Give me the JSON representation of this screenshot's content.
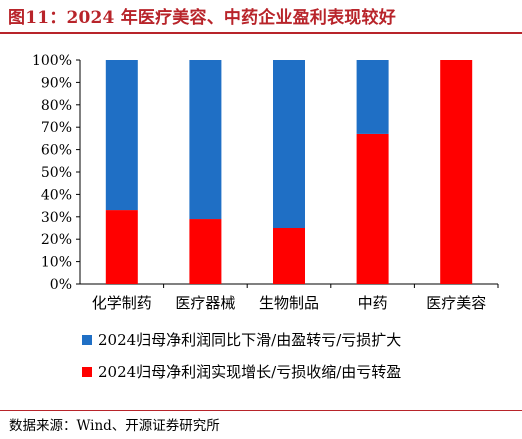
{
  "figure": {
    "title": "图11：2024 年医疗美容、中药企业盈利表现较好",
    "source": "数据来源：Wind、开源证券研究所"
  },
  "colors": {
    "blue": "#1f6fc5",
    "red": "#ff0000",
    "title": "#b8242a"
  },
  "chart_data": {
    "type": "bar",
    "stacked": true,
    "percent": true,
    "categories": [
      "化学制药",
      "医疗器械",
      "生物制品",
      "中药",
      "医疗美容"
    ],
    "series": [
      {
        "name": "2024归母净利润实现增长/亏损收缩/由亏转盈",
        "color": "red",
        "values": [
          33,
          29,
          25,
          67,
          100
        ]
      },
      {
        "name": "2024归母净利润同比下滑/由盈转亏/亏损扩大",
        "color": "blue",
        "values": [
          67,
          71,
          75,
          33,
          0
        ]
      }
    ],
    "ylim": [
      0,
      100
    ],
    "yticks": [
      "0%",
      "10%",
      "20%",
      "30%",
      "40%",
      "50%",
      "60%",
      "70%",
      "80%",
      "90%",
      "100%"
    ],
    "legend": {
      "placement": "bottom",
      "items": [
        "2024归母净利润同比下滑/由盈转亏/亏损扩大",
        "2024归母净利润实现增长/亏损收缩/由亏转盈"
      ]
    },
    "grid": false
  }
}
